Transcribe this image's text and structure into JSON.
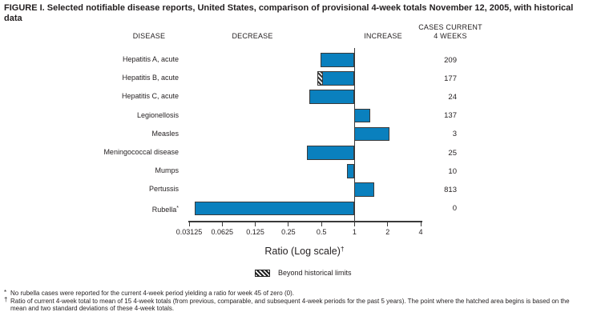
{
  "title": "FIGURE I. Selected notifiable disease reports, United States, comparison of provisional 4-week totals November 12, 2005, with historical data",
  "headers": {
    "disease": "DISEASE",
    "decrease": "DECREASE",
    "increase": "INCREASE",
    "cases_line1": "CASES CURRENT",
    "cases_line2": "4 WEEKS"
  },
  "chart_data": {
    "type": "bar",
    "orientation": "horizontal",
    "scale": "log2",
    "xlabel": "Ratio (Log scale)",
    "xlabel_sup": "†",
    "axis": {
      "min": 0.03125,
      "max": 4,
      "baseline": 1
    },
    "x_ticks": [
      "0.03125",
      "0.0625",
      "0.125",
      "0.25",
      "0.5",
      "1",
      "2",
      "4"
    ],
    "rows": [
      {
        "label": "Hepatitis A, acute",
        "cases": "209",
        "ratio": 0.49
      },
      {
        "label": "Hepatitis B, acute",
        "cases": "177",
        "ratio": 0.46,
        "hatch_to": 0.51
      },
      {
        "label": "Hepatitis C, acute",
        "cases": "24",
        "ratio": 0.39
      },
      {
        "label": "Legionellosis",
        "cases": "137",
        "ratio": 1.39
      },
      {
        "label": "Measles",
        "cases": "3",
        "ratio": 2.08
      },
      {
        "label": "Meningococcal disease",
        "cases": "25",
        "ratio": 0.37
      },
      {
        "label": "Mumps",
        "cases": "10",
        "ratio": 0.85
      },
      {
        "label": "Pertussis",
        "cases": "813",
        "ratio": 1.52
      },
      {
        "label": "Rubella",
        "label_suffix": "*",
        "cases": "0",
        "ratio": 0,
        "bar_ratio": 0.035
      }
    ],
    "legend": {
      "swatch": "hatched",
      "label": "Beyond historical limits"
    }
  },
  "footnotes": [
    {
      "marker": "*",
      "text": "No rubella cases were reported for the current 4-week period yielding a ratio for week 45 of zero (0)."
    },
    {
      "marker": "†",
      "text": "Ratio of current 4-week total to mean of 15 4-week totals (from previous, comparable, and subsequent 4-week periods for the past 5 years). The point where the hatched area begins is based on the mean and two standard deviations of these 4-week totals."
    }
  ],
  "colors": {
    "bar_fill": "#0a80be",
    "bar_border": "#3a3a3a",
    "text": "#231f20"
  }
}
